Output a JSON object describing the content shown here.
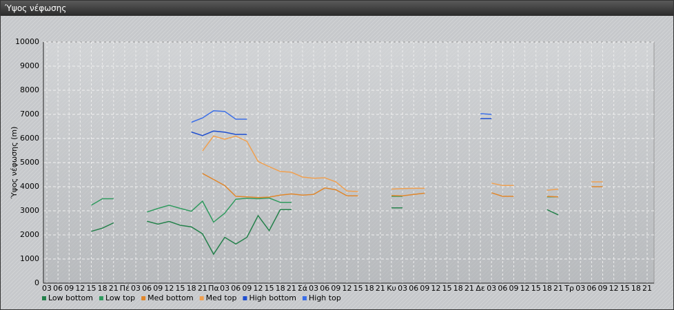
{
  "chart_data": {
    "type": "line",
    "title": "Ύψος νέφωσης",
    "y_label": "Ύψος νέφωσης (m)",
    "categories": [
      "03",
      "06",
      "09",
      "12",
      "15",
      "18",
      "21",
      "Πέ",
      "03",
      "06",
      "09",
      "12",
      "15",
      "18",
      "21",
      "Πα",
      "03",
      "06",
      "09",
      "12",
      "15",
      "18",
      "21",
      "Σά",
      "03",
      "06",
      "09",
      "12",
      "15",
      "18",
      "21",
      "Κυ",
      "03",
      "06",
      "09",
      "12",
      "15",
      "18",
      "21",
      "Δε",
      "03",
      "06",
      "09",
      "12",
      "15",
      "18",
      "21",
      "Τρ",
      "03",
      "06",
      "09",
      "12",
      "15",
      "18",
      "21"
    ],
    "ylim": [
      0,
      10000
    ],
    "yticks": [
      0,
      1000,
      2000,
      3000,
      4000,
      5000,
      6000,
      7000,
      8000,
      9000,
      10000
    ],
    "grid": true,
    "series": [
      {
        "name": "Low bottom",
        "color": "#23804a",
        "values": [
          null,
          null,
          null,
          null,
          2150,
          2280,
          2500,
          null,
          null,
          2570,
          2450,
          2560,
          2400,
          2330,
          2050,
          1200,
          1900,
          1620,
          1900,
          2800,
          2180,
          3050,
          3050,
          null,
          null,
          null,
          null,
          null,
          null,
          null,
          null,
          3120,
          3120,
          null,
          null,
          null,
          null,
          null,
          null,
          null,
          null,
          null,
          null,
          null,
          null,
          3050,
          2830,
          null,
          null,
          null,
          null,
          null,
          null,
          null,
          null
        ]
      },
      {
        "name": "Low top",
        "color": "#2f9a5e",
        "values": [
          null,
          null,
          null,
          null,
          3230,
          3500,
          3500,
          null,
          null,
          2950,
          3100,
          3230,
          3100,
          2980,
          3400,
          2530,
          2900,
          3480,
          3520,
          3500,
          3530,
          3350,
          3350,
          null,
          null,
          null,
          null,
          null,
          null,
          null,
          null,
          3600,
          3600,
          null,
          null,
          null,
          null,
          null,
          null,
          null,
          null,
          null,
          null,
          null,
          null,
          3580,
          3580,
          null,
          null,
          null,
          null,
          null,
          null,
          null,
          null
        ]
      },
      {
        "name": "Med bottom",
        "color": "#e0862a",
        "values": [
          null,
          null,
          null,
          null,
          null,
          null,
          null,
          null,
          null,
          null,
          null,
          null,
          null,
          null,
          4550,
          4300,
          4050,
          3600,
          3580,
          3550,
          3570,
          3650,
          3700,
          3650,
          3680,
          3950,
          3870,
          3620,
          3620,
          null,
          null,
          3630,
          3620,
          3680,
          3730,
          null,
          null,
          null,
          null,
          null,
          3750,
          3600,
          3600,
          null,
          null,
          3600,
          3580,
          null,
          null,
          4000,
          4000,
          null,
          null,
          null,
          null
        ]
      },
      {
        "name": "Med top",
        "color": "#f0a050",
        "values": [
          null,
          null,
          null,
          null,
          null,
          null,
          null,
          null,
          null,
          null,
          null,
          null,
          null,
          null,
          5480,
          6100,
          5970,
          6100,
          5880,
          5050,
          4830,
          4630,
          4600,
          4400,
          4350,
          4370,
          4200,
          3820,
          3800,
          null,
          null,
          3900,
          3920,
          3930,
          3930,
          null,
          null,
          null,
          null,
          null,
          4150,
          4050,
          4050,
          null,
          null,
          3850,
          3900,
          null,
          null,
          4200,
          4200,
          null,
          null,
          null,
          null
        ]
      },
      {
        "name": "High bottom",
        "color": "#1f4fd0",
        "values": [
          null,
          null,
          null,
          null,
          null,
          null,
          null,
          null,
          null,
          null,
          null,
          null,
          null,
          6270,
          6120,
          6310,
          6260,
          6170,
          6170,
          null,
          null,
          null,
          null,
          null,
          null,
          null,
          null,
          null,
          null,
          null,
          null,
          null,
          null,
          null,
          null,
          null,
          null,
          null,
          null,
          6820,
          6820,
          null,
          null,
          null,
          null,
          null,
          null,
          null,
          null,
          null,
          null,
          null,
          null,
          null,
          null
        ]
      },
      {
        "name": "High top",
        "color": "#3a6ee8",
        "values": [
          null,
          null,
          null,
          null,
          null,
          null,
          null,
          null,
          null,
          null,
          null,
          null,
          null,
          6670,
          6850,
          7150,
          7120,
          6800,
          6800,
          null,
          null,
          null,
          null,
          null,
          null,
          null,
          null,
          null,
          null,
          null,
          null,
          null,
          null,
          null,
          null,
          null,
          null,
          null,
          null,
          7030,
          7000,
          null,
          null,
          null,
          null,
          null,
          null,
          null,
          null,
          null,
          null,
          null,
          null,
          null,
          null
        ]
      }
    ]
  }
}
